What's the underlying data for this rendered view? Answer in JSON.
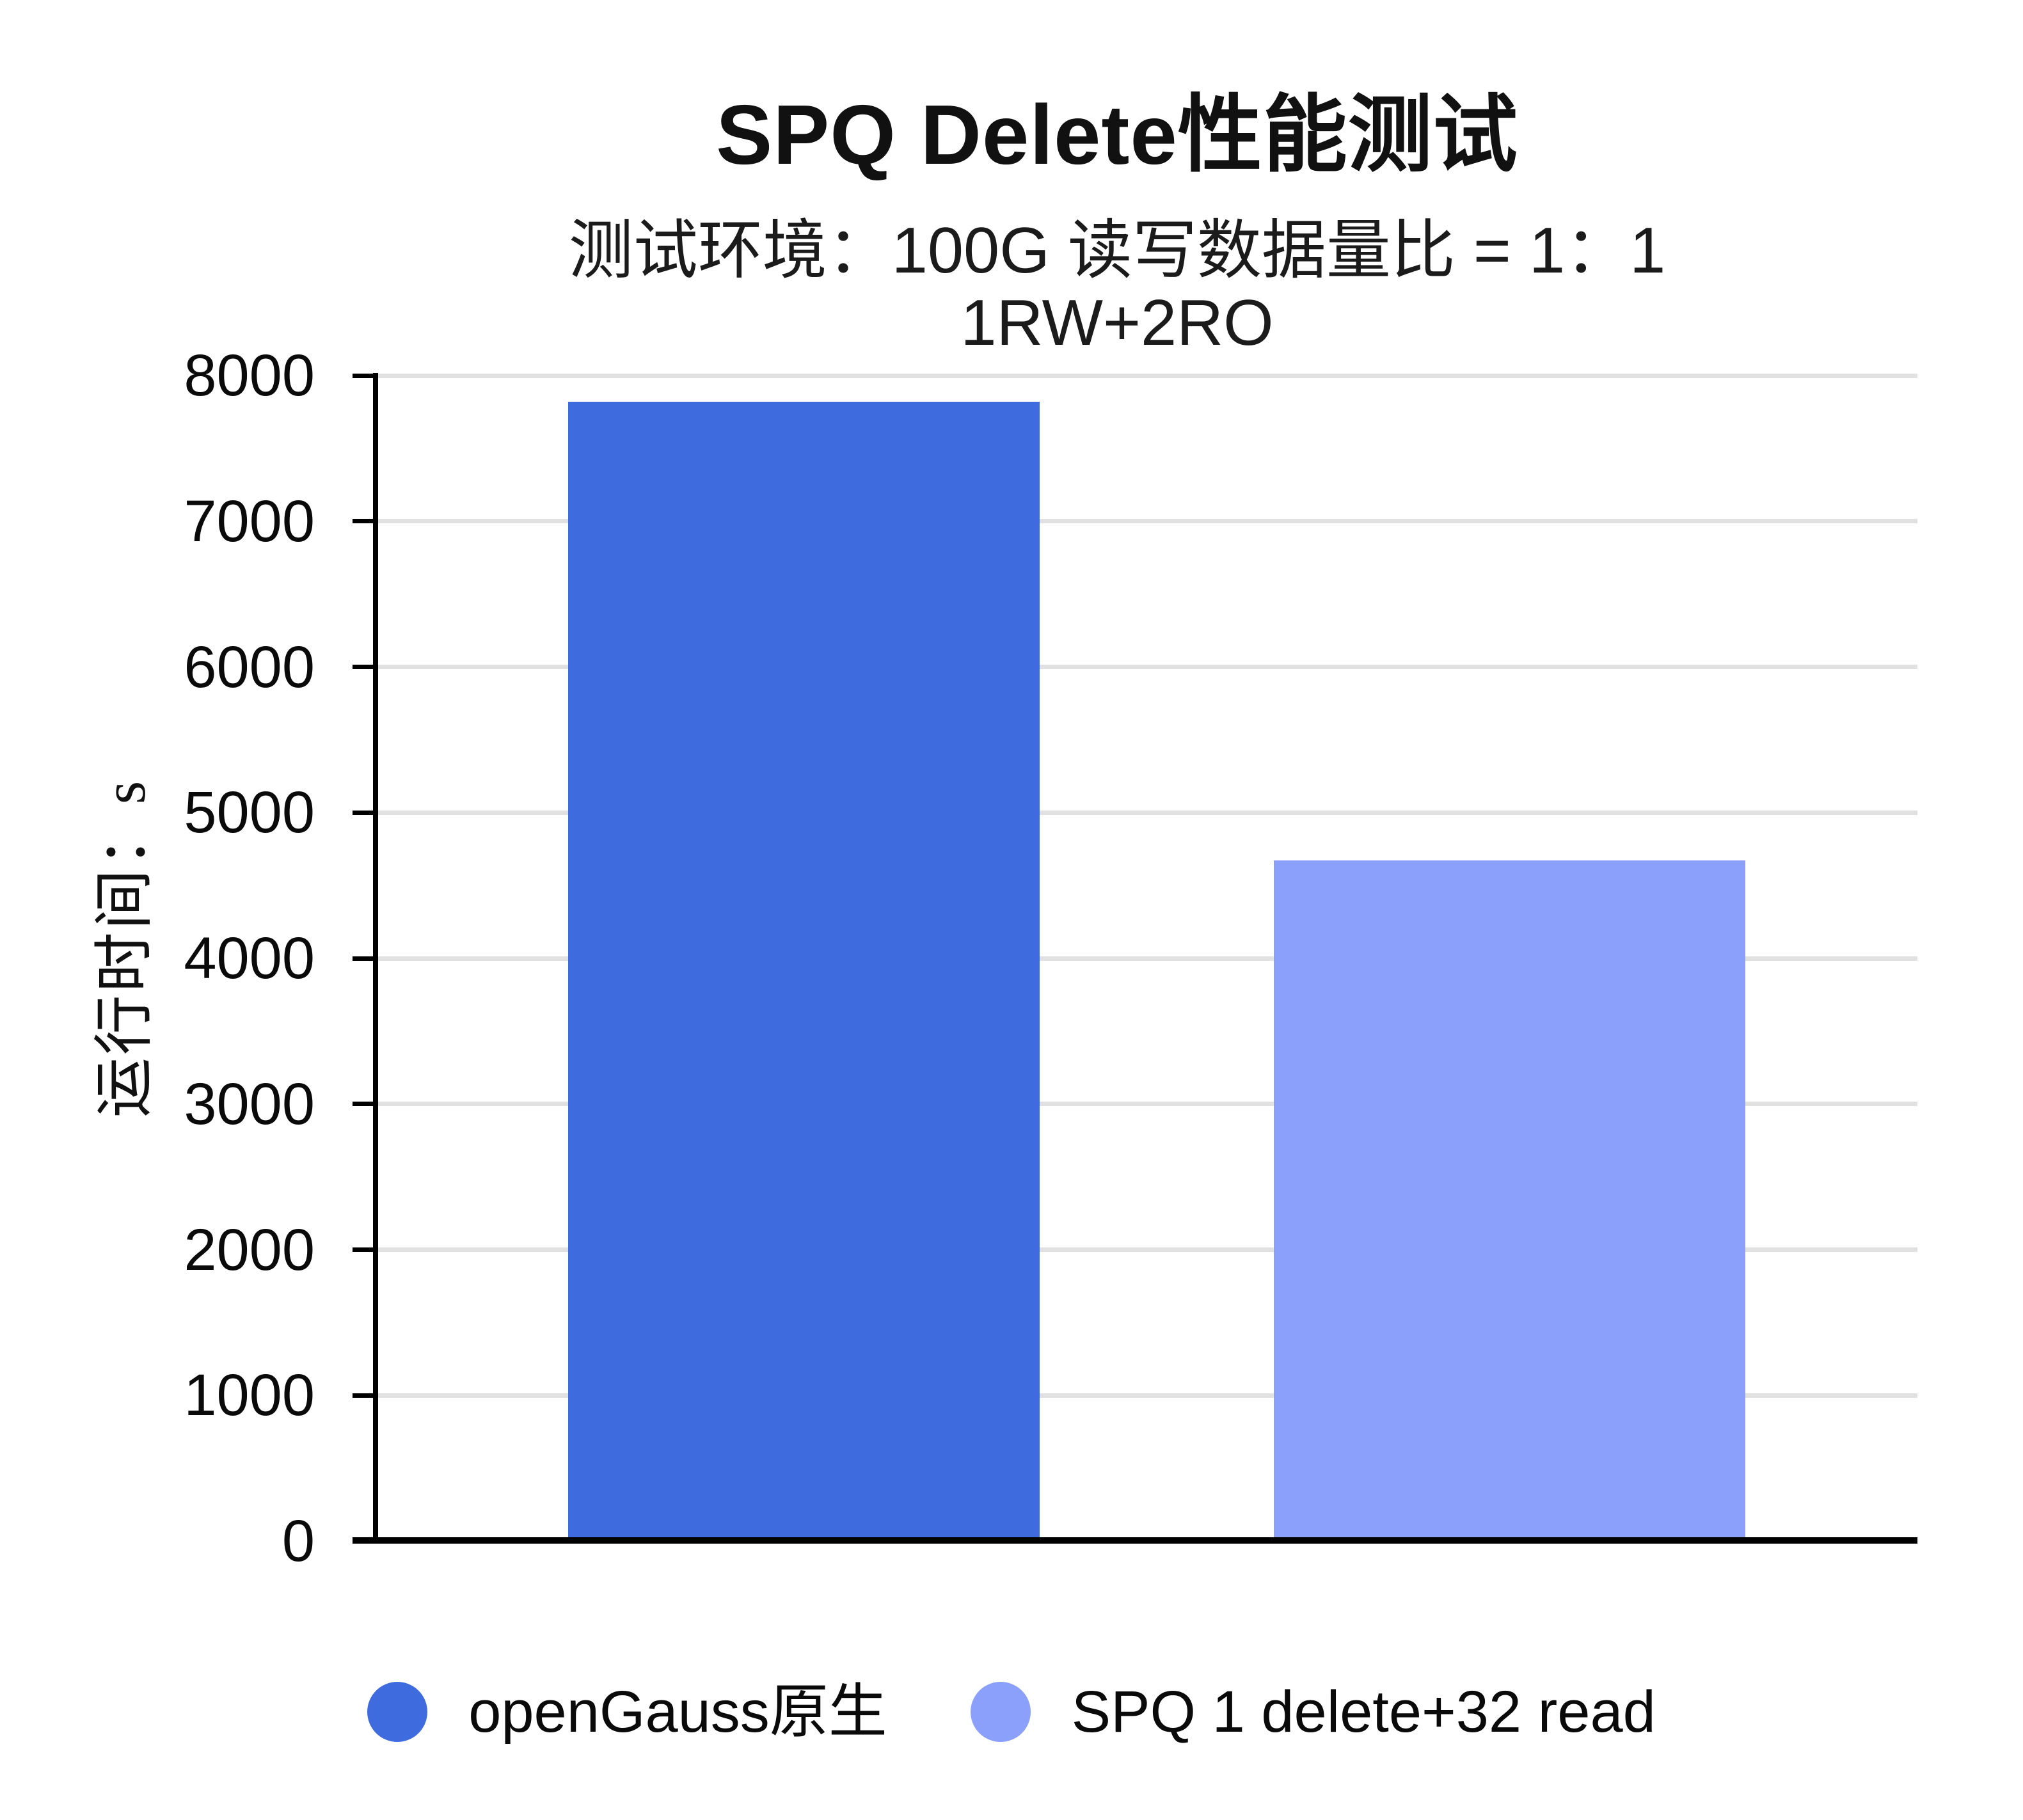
{
  "title": "SPQ Delete性能测试",
  "subtitle_line1": "测试环境：100G 读写数据量比 = 1：1",
  "subtitle_line2": "1RW+2RO",
  "y_axis": {
    "label": "运行时间：s",
    "tick_labels": [
      "0",
      "1000",
      "2000",
      "3000",
      "4000",
      "5000",
      "6000",
      "7000",
      "8000"
    ]
  },
  "legend": {
    "items": [
      {
        "label": "openGauss原生",
        "color": "#3e6cde"
      },
      {
        "label": "SPQ 1 delete+32 read",
        "color": "#8ba0fb"
      }
    ]
  },
  "colors": {
    "bar_primary": "#3e6cde",
    "bar_secondary": "#8ba0fb",
    "gridline": "#e1e1e1",
    "axis": "#000000",
    "text": "#111111"
  },
  "chart_data": {
    "type": "bar",
    "title": "SPQ Delete性能测试",
    "subtitle": "测试环境：100G 读写数据量比 = 1：1 1RW+2RO",
    "categories": [
      ""
    ],
    "series": [
      {
        "name": "openGauss原生",
        "values": [
          7820
        ],
        "color": "#3e6cde"
      },
      {
        "name": "SPQ 1 delete+32 read",
        "values": [
          4670
        ],
        "color": "#8ba0fb"
      }
    ],
    "xlabel": "",
    "ylabel": "运行时间：s",
    "ylim": [
      0,
      8000
    ],
    "ytick_step": 1000,
    "grid": true,
    "legend_position": "bottom"
  }
}
